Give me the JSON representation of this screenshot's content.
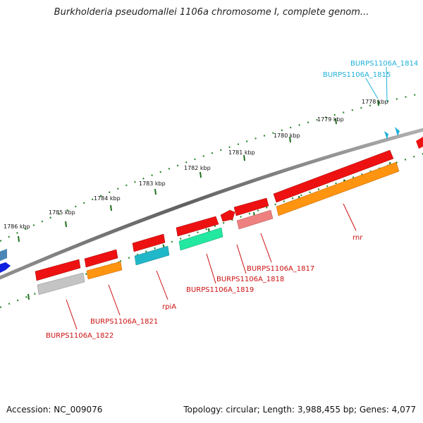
{
  "title": "Burkholderia pseudomallei 1106a chromosome I, complete genom...",
  "accession": "Accession: NC_009076",
  "topology": "Topology: circular; Length: 3,988,455 bp; Genes: 4,077",
  "kbp_ticks": [
    "1778 kbp",
    "1779 kbp",
    "1780 kbp",
    "1781 kbp",
    "1782 kbp",
    "1783 kbp",
    "1784 kbp",
    "1785 kbp",
    "1786 kbp"
  ],
  "gene_labels": {
    "BURPS1106A_1814": "BURPS1106A_1814",
    "BURPS1106A_1815": "BURPS1106A_1815",
    "rnr": "rnr",
    "BURPS1106A_1817": "BURPS1106A_1817",
    "BURPS1106A_1818": "BURPS1106A_1818",
    "BURPS1106A_1819": "BURPS1106A_1819",
    "rpiA": "rpiA",
    "BURPS1106A_1821": "BURPS1106A_1821",
    "BURPS1106A_1822": "BURPS1106A_1822"
  },
  "colors": {
    "backbone": "#7a7a7a",
    "tick": "#2a7a2a",
    "label_red": "#cc1010",
    "label_cyan": "#1fb0d8",
    "gene_red": "#ee1111",
    "gene_orange": "#ff9410",
    "gene_teal": "#20b8c8",
    "gene_green": "#22e8a0",
    "gene_pink": "#ee8080",
    "gene_gray": "#c4c4c4",
    "gene_blue": "#1020e0",
    "gene_steel": "#4080b0"
  }
}
